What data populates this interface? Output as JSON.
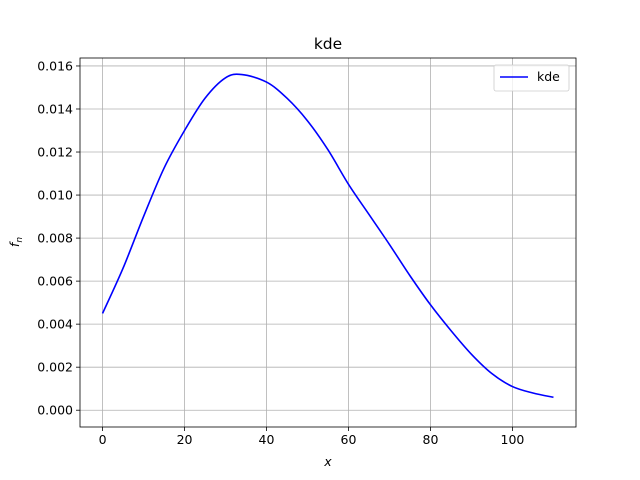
{
  "chart_data": {
    "type": "line",
    "title": "kde",
    "xlabel": "x",
    "ylabel_main": "f",
    "ylabel_sub": "n",
    "xlim": [
      -5.5,
      115.5
    ],
    "ylim": [
      -0.00078,
      0.01637
    ],
    "xticks": [
      0,
      20,
      40,
      60,
      80,
      100
    ],
    "xtick_labels": [
      "0",
      "20",
      "40",
      "60",
      "80",
      "100"
    ],
    "yticks": [
      0.0,
      0.002,
      0.004,
      0.006,
      0.008,
      0.01,
      0.012,
      0.014,
      0.016
    ],
    "ytick_labels": [
      "0.000",
      "0.002",
      "0.004",
      "0.006",
      "0.008",
      "0.010",
      "0.012",
      "0.014",
      "0.016"
    ],
    "grid": true,
    "legend": {
      "placement": "top-right",
      "entries": [
        "kde"
      ]
    },
    "series": [
      {
        "name": "kde",
        "color": "#0000ff",
        "x": [
          0,
          5,
          10,
          15,
          20,
          25,
          30,
          34,
          40,
          45,
          50,
          55,
          60,
          65,
          70,
          75,
          80,
          85,
          90,
          95,
          100,
          105,
          110
        ],
        "y": [
          0.0045,
          0.0066,
          0.009,
          0.01125,
          0.013,
          0.0145,
          0.01545,
          0.0156,
          0.01525,
          0.0145,
          0.01345,
          0.0121,
          0.0105,
          0.0091,
          0.0077,
          0.00625,
          0.0049,
          0.0037,
          0.0026,
          0.0017,
          0.0011,
          0.0008,
          0.0006
        ]
      }
    ]
  }
}
